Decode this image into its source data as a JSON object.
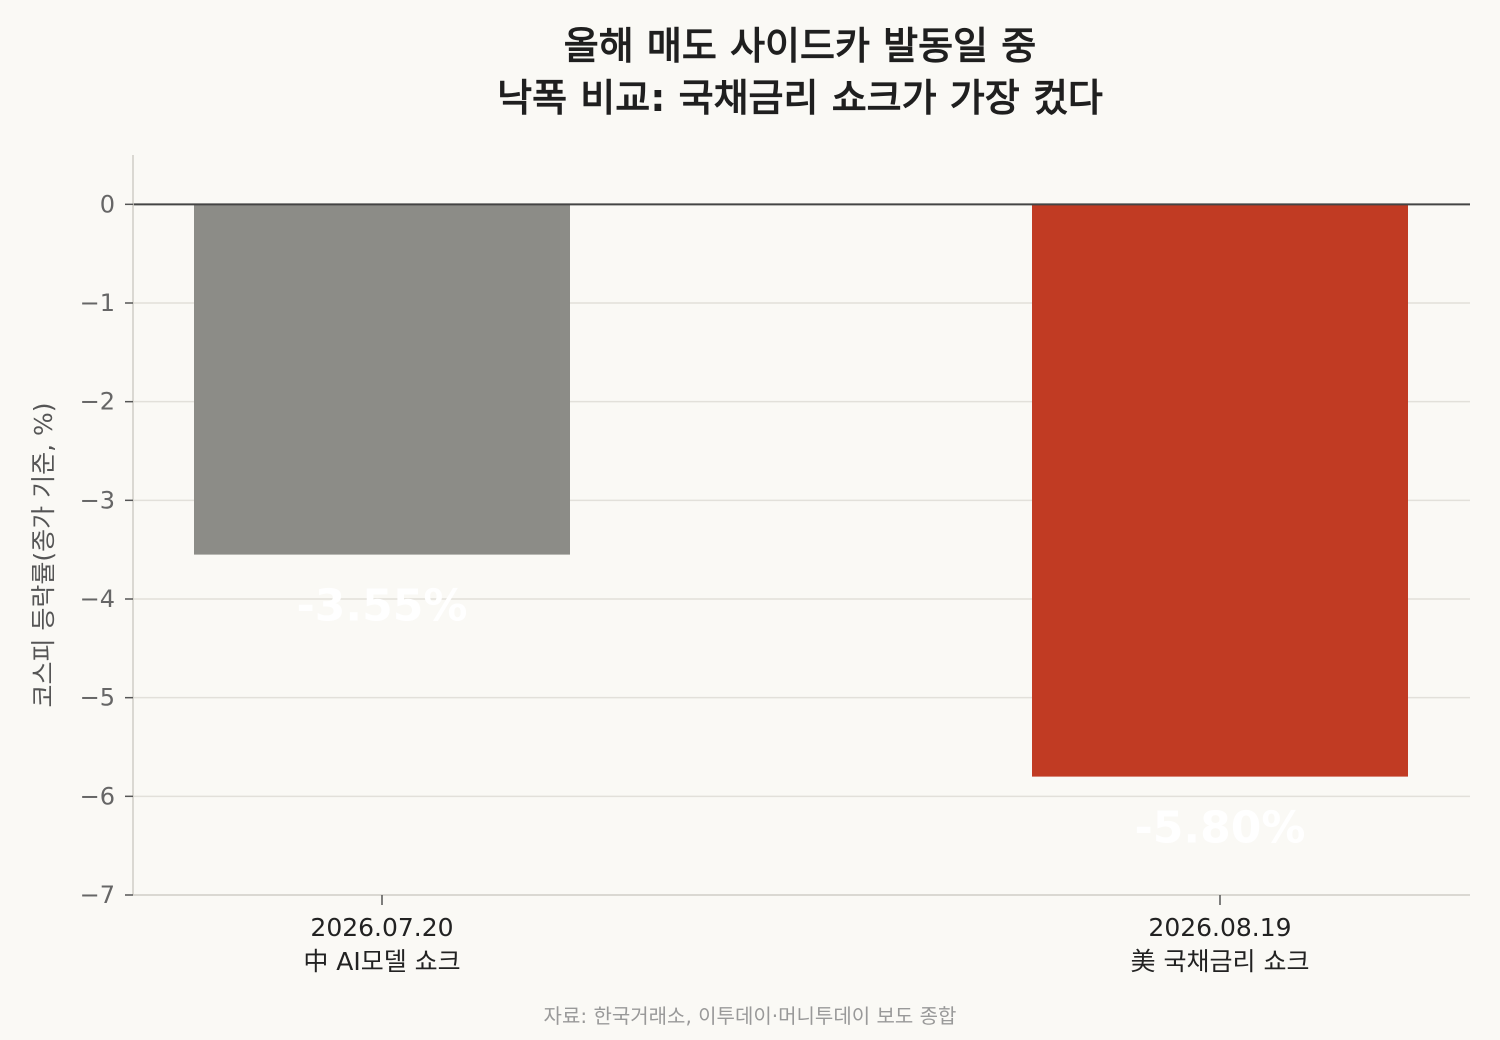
{
  "chart_data": {
    "type": "bar",
    "title_lines": [
      "올해 매도 사이드카 발동일 중",
      "낙폭 비교: 국채금리 쇼크가 가장 컸다"
    ],
    "ylabel": "코스피 등락률(종가 기준, %)",
    "categories": [
      {
        "date": "2026.07.20",
        "event": "中 AI모델 쇼크"
      },
      {
        "date": "2026.08.19",
        "event": "美 국채금리 쇼크"
      }
    ],
    "values": [
      -3.55,
      -5.8
    ],
    "value_labels": [
      "-3.55%",
      "-5.80%"
    ],
    "bar_colors": [
      "#8c8c87",
      "#c13b23"
    ],
    "ylim": [
      -7,
      0.5
    ],
    "yticks": [
      0,
      -1,
      -2,
      -3,
      -4,
      -5,
      -6,
      -7
    ],
    "ytick_labels": [
      "0",
      "−1",
      "−2",
      "−3",
      "−4",
      "−5",
      "−6",
      "−7"
    ],
    "grid": true,
    "source": "자료: 한국거래소, 이투데이·머니투데이 보도 종합"
  }
}
